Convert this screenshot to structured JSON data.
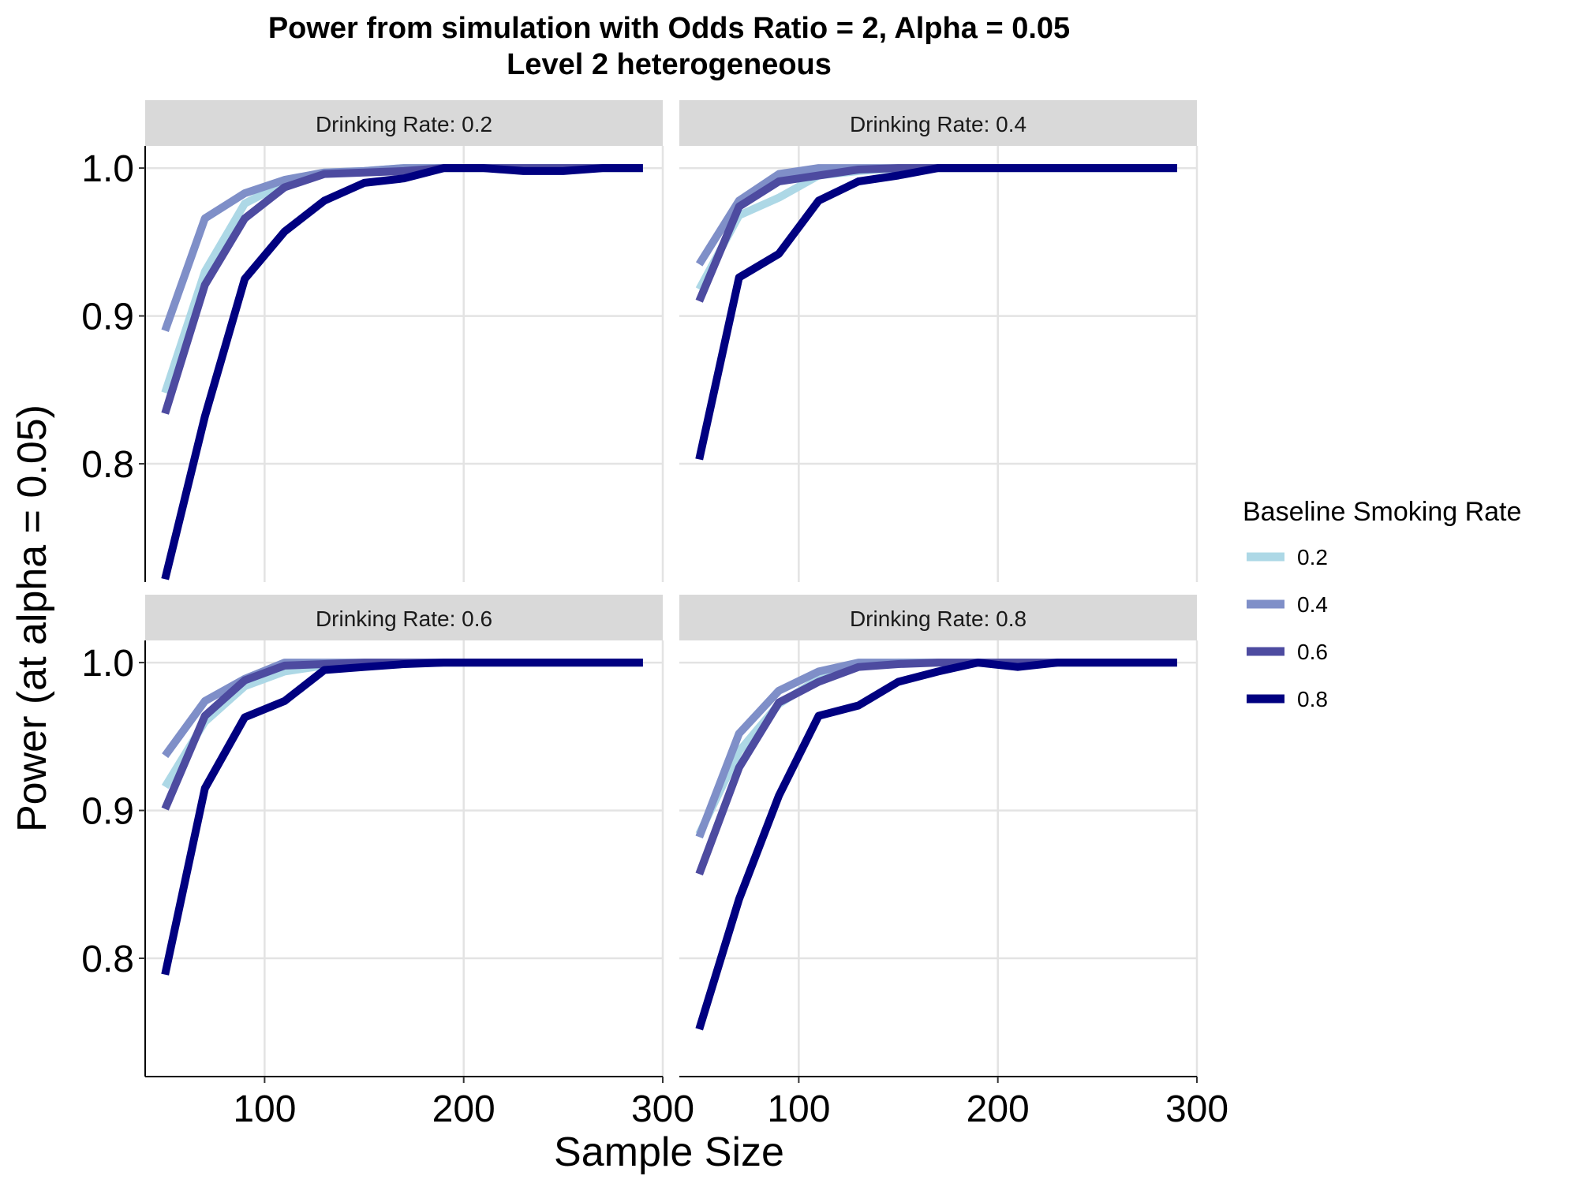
{
  "chart_data": {
    "type": "line",
    "title": "Power from simulation with Odds Ratio = 2, Alpha = 0.05",
    "subtitle": "Level 2 heterogeneous",
    "xlabel": "Sample Size",
    "ylabel": "Power (at alpha = 0.05)",
    "xlim": [
      40,
      300
    ],
    "ylim": [
      0.72,
      1.015
    ],
    "x_ticks": [
      100,
      200,
      300
    ],
    "x_tick_labels": [
      "100",
      "200",
      "300"
    ],
    "y_ticks": [
      0.8,
      0.9,
      1.0
    ],
    "y_tick_labels": [
      "0.8",
      "0.9",
      "1.0"
    ],
    "grid": true,
    "legend": {
      "title": "Baseline Smoking Rate",
      "position": "right",
      "entries": [
        "0.2",
        "0.4",
        "0.6",
        "0.8"
      ]
    },
    "colors": {
      "0.2": "#add8e6",
      "0.4": "#7f8fc8",
      "0.6": "#4d4ba0",
      "0.8": "#000080"
    },
    "facet_label_prefix": "Drinking Rate:",
    "x": [
      50,
      70,
      90,
      110,
      130,
      150,
      170,
      190,
      210,
      230,
      250,
      270,
      290
    ],
    "panels": [
      {
        "label": "Drinking Rate:  0.2",
        "series": [
          {
            "name": "0.2",
            "values": [
              0.848,
              0.93,
              0.976,
              0.99,
              0.997,
              0.998,
              1.0,
              1.0,
              1.0,
              1.0,
              1.0,
              1.0,
              1.0
            ]
          },
          {
            "name": "0.4",
            "values": [
              0.89,
              0.966,
              0.983,
              0.992,
              0.997,
              0.998,
              1.0,
              1.0,
              1.0,
              1.0,
              1.0,
              1.0,
              1.0
            ]
          },
          {
            "name": "0.6",
            "values": [
              0.834,
              0.921,
              0.966,
              0.987,
              0.996,
              0.997,
              0.998,
              1.0,
              1.0,
              1.0,
              1.0,
              1.0,
              1.0
            ]
          },
          {
            "name": "0.8",
            "values": [
              0.722,
              0.832,
              0.925,
              0.957,
              0.978,
              0.99,
              0.993,
              1.0,
              1.0,
              0.998,
              0.998,
              1.0,
              1.0
            ]
          }
        ]
      },
      {
        "label": "Drinking Rate:  0.4",
        "series": [
          {
            "name": "0.2",
            "values": [
              0.918,
              0.968,
              0.98,
              0.995,
              0.998,
              1.0,
              1.0,
              1.0,
              1.0,
              1.0,
              1.0,
              1.0,
              1.0
            ]
          },
          {
            "name": "0.4",
            "values": [
              0.935,
              0.978,
              0.996,
              1.0,
              1.0,
              1.0,
              1.0,
              1.0,
              1.0,
              1.0,
              1.0,
              1.0,
              1.0
            ]
          },
          {
            "name": "0.6",
            "values": [
              0.91,
              0.974,
              0.991,
              0.995,
              0.999,
              1.0,
              1.0,
              1.0,
              1.0,
              1.0,
              1.0,
              1.0,
              1.0
            ]
          },
          {
            "name": "0.8",
            "values": [
              0.803,
              0.926,
              0.942,
              0.978,
              0.991,
              0.995,
              1.0,
              1.0,
              1.0,
              1.0,
              1.0,
              1.0,
              1.0
            ]
          }
        ]
      },
      {
        "label": "Drinking Rate:  0.6",
        "series": [
          {
            "name": "0.2",
            "values": [
              0.916,
              0.96,
              0.984,
              0.994,
              0.998,
              1.0,
              1.0,
              1.0,
              1.0,
              1.0,
              1.0,
              1.0,
              1.0
            ]
          },
          {
            "name": "0.4",
            "values": [
              0.937,
              0.974,
              0.989,
              1.0,
              1.0,
              1.0,
              1.0,
              1.0,
              1.0,
              1.0,
              1.0,
              1.0,
              1.0
            ]
          },
          {
            "name": "0.6",
            "values": [
              0.901,
              0.964,
              0.988,
              0.998,
              0.999,
              1.0,
              1.0,
              1.0,
              1.0,
              1.0,
              1.0,
              1.0,
              1.0
            ]
          },
          {
            "name": "0.8",
            "values": [
              0.789,
              0.915,
              0.963,
              0.974,
              0.995,
              0.997,
              0.999,
              1.0,
              1.0,
              1.0,
              1.0,
              1.0,
              1.0
            ]
          }
        ]
      },
      {
        "label": "Drinking Rate:  0.8",
        "series": [
          {
            "name": "0.2",
            "values": [
              0.884,
              0.94,
              0.972,
              0.989,
              0.998,
              1.0,
              1.0,
              1.0,
              1.0,
              1.0,
              1.0,
              1.0,
              1.0
            ]
          },
          {
            "name": "0.4",
            "values": [
              0.882,
              0.952,
              0.981,
              0.994,
              1.0,
              1.0,
              1.0,
              1.0,
              1.0,
              1.0,
              1.0,
              1.0,
              1.0
            ]
          },
          {
            "name": "0.6",
            "values": [
              0.857,
              0.929,
              0.973,
              0.987,
              0.997,
              0.999,
              1.0,
              1.0,
              1.0,
              1.0,
              1.0,
              1.0,
              1.0
            ]
          },
          {
            "name": "0.8",
            "values": [
              0.752,
              0.84,
              0.91,
              0.964,
              0.971,
              0.987,
              0.994,
              1.0,
              0.997,
              1.0,
              1.0,
              1.0,
              1.0
            ]
          }
        ]
      }
    ]
  }
}
